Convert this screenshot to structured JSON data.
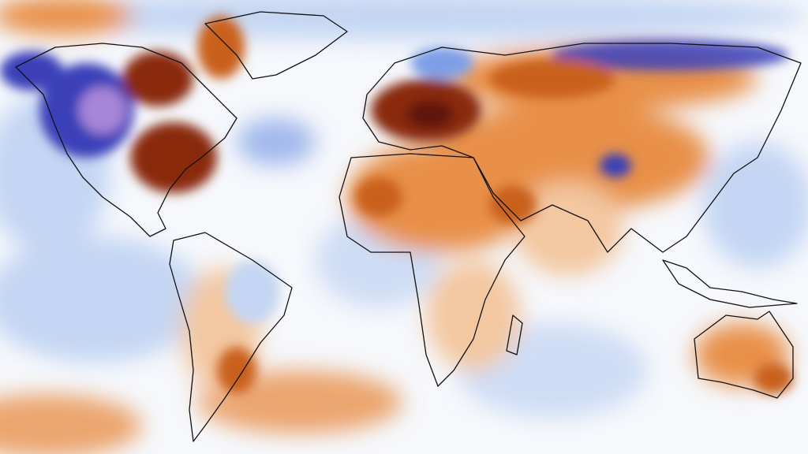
{
  "colors": {
    "background": "#f6f8fc",
    "cold_strong": "#5a4ab0",
    "cold_deep": "#3a3fb8",
    "cold": "#7d9ee6",
    "cold_light": "#c4d6f3",
    "neutral": "#ffffff",
    "warm_light": "#f3c7a0",
    "warm": "#e8904a",
    "warm_strong": "#c9601e",
    "hot": "#8a2a10",
    "hot_extreme": "#5e1208",
    "cold_extreme": "#a785d8",
    "coastline": "#111111"
  }
}
